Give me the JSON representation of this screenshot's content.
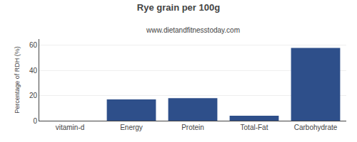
{
  "chart_data": {
    "type": "bar",
    "title": "Rye grain per 100g",
    "subtitle": "www.dietandfitnesstoday.com",
    "ylabel": "Percentage of RDH (%)",
    "categories": [
      "vitamin-d",
      "Energy",
      "Protein",
      "Total-Fat",
      "Carbohydrate"
    ],
    "values": [
      0,
      17,
      18,
      4,
      58
    ],
    "color": "#2e4f8a",
    "ylim": [
      0,
      65
    ],
    "yticks": [
      0,
      20,
      40,
      60
    ],
    "grid": true
  }
}
